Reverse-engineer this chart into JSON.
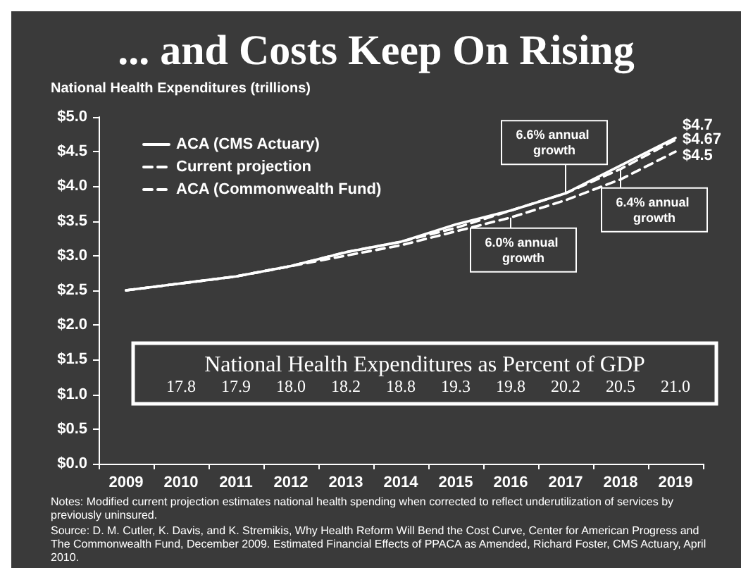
{
  "chart_data": [
    {
      "type": "line",
      "title": "... and Costs Keep On Rising",
      "ylabel": "National Health Expenditures (trillions)",
      "categories": [
        "2009",
        "2010",
        "2011",
        "2012",
        "2013",
        "2014",
        "2015",
        "2016",
        "2017",
        "2018",
        "2019"
      ],
      "series": [
        {
          "name": "ACA (CMS Actuary)",
          "color": "#ffffff",
          "line_style": "solid",
          "values": [
            2.5,
            2.6,
            2.7,
            2.85,
            3.05,
            3.2,
            3.45,
            3.65,
            3.9,
            4.3,
            4.7
          ],
          "value_labels": [
            null,
            null,
            null,
            null,
            null,
            null,
            null,
            null,
            null,
            null,
            "$4.7"
          ]
        },
        {
          "name": "Current projection",
          "color": "#ffffff",
          "line_style": "dashed",
          "values": [
            2.5,
            2.6,
            2.7,
            2.85,
            3.05,
            3.2,
            3.4,
            3.65,
            3.9,
            4.25,
            4.67
          ],
          "value_labels": [
            null,
            null,
            null,
            null,
            null,
            null,
            null,
            null,
            null,
            null,
            "$4.67"
          ]
        },
        {
          "name": "ACA (Commonwealth Fund)",
          "color": "#ffffff",
          "line_style": "dashed",
          "values": [
            2.5,
            2.6,
            2.7,
            2.85,
            3.0,
            3.15,
            3.35,
            3.55,
            3.8,
            4.1,
            4.5
          ],
          "value_labels": [
            null,
            null,
            null,
            null,
            null,
            null,
            null,
            null,
            null,
            null,
            "$4.5"
          ]
        }
      ],
      "ylim": [
        0,
        5
      ],
      "yticks": [
        {
          "value": 0,
          "label": "$0.0"
        },
        {
          "value": 0.5,
          "label": "$0.5"
        },
        {
          "value": 1,
          "label": "$1.0"
        },
        {
          "value": 1.5,
          "label": "$1.5"
        },
        {
          "value": 2,
          "label": "$2.0"
        },
        {
          "value": 2.5,
          "label": "$2.5"
        },
        {
          "value": 3,
          "label": "$3.0"
        },
        {
          "value": 3.5,
          "label": "$3.5"
        },
        {
          "value": 4,
          "label": "$4.0"
        },
        {
          "value": 4.5,
          "label": "$4.5"
        },
        {
          "value": 5,
          "label": "$5.0"
        }
      ],
      "legend": "top left",
      "annotations": [
        {
          "text": "6.6% annual growth",
          "x": "2017",
          "y": 3.9
        },
        {
          "text": "6.4% annual growth",
          "x": "2018",
          "y": 4.25
        },
        {
          "text": "6.0% annual growth",
          "x": "2016",
          "y": 3.55
        },
        "Notes: Modified current projection estimates national health spending when corrected to reflect underutilization of services by previously uninsured.",
        "Source: D. M. Cutler, K. Davis, and K. Stremikis, Why Health Reform Will Bend the Cost Curve, Center for American Progress and The Commonwealth Fund, December 2009. Estimated Financial Effects of PPACA as Amended, Richard Foster, CMS Actuary, April 2010."
      ]
    },
    {
      "type": "other",
      "title": "National Health Expenditures as Percent of GDP",
      "categories": [
        null,
        null,
        null,
        null,
        null,
        null,
        null,
        null,
        null,
        null
      ],
      "values": [
        17.8,
        17.9,
        18.0,
        18.2,
        18.8,
        19.3,
        19.8,
        20.2,
        20.5,
        21.0
      ],
      "value_labels": [
        "17.8",
        "17.9",
        "18.0",
        "18.2",
        "18.8",
        "19.3",
        "19.8",
        "20.2",
        "20.5",
        "21.0"
      ]
    }
  ]
}
